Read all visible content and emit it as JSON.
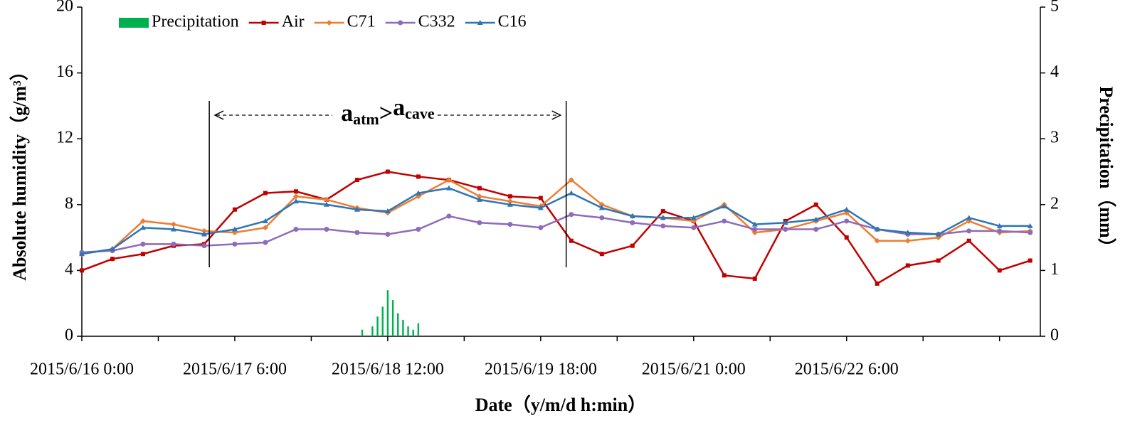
{
  "chart_data": {
    "type": "line",
    "x": [
      "2015/6/16 0:00",
      "2015/6/16 6:00",
      "2015/6/16 12:00",
      "2015/6/16 18:00",
      "2015/6/17 0:00",
      "2015/6/17 6:00",
      "2015/6/17 12:00",
      "2015/6/17 18:00",
      "2015/6/18 0:00",
      "2015/6/18 6:00",
      "2015/6/18 12:00",
      "2015/6/18 18:00",
      "2015/6/19 0:00",
      "2015/6/19 6:00",
      "2015/6/19 12:00",
      "2015/6/19 18:00",
      "2015/6/20 0:00",
      "2015/6/20 6:00",
      "2015/6/20 12:00",
      "2015/6/20 18:00",
      "2015/6/21 0:00",
      "2015/6/21 6:00",
      "2015/6/21 12:00",
      "2015/6/21 18:00",
      "2015/6/22 0:00",
      "2015/6/22 6:00",
      "2015/6/22 12:00",
      "2015/6/22 18:00",
      "2015/6/23 0:00",
      "2015/6/23 6:00",
      "2015/6/23 12:00",
      "2015/6/23 18:00"
    ],
    "series": [
      {
        "name": "Air",
        "color": "#c00000",
        "marker": "square",
        "values": [
          4.0,
          4.7,
          5.0,
          5.5,
          5.6,
          7.7,
          8.7,
          8.8,
          8.3,
          9.5,
          10.0,
          9.7,
          9.5,
          9.0,
          8.5,
          8.4,
          5.8,
          5.0,
          5.5,
          7.6,
          7.0,
          3.7,
          3.5,
          7.0,
          8.0,
          6.0,
          3.2,
          4.3,
          4.6,
          5.8,
          4.0,
          4.6
        ]
      },
      {
        "name": "C71",
        "color": "#ed7d31",
        "marker": "diamond",
        "values": [
          5.0,
          5.3,
          7.0,
          6.8,
          6.4,
          6.3,
          6.6,
          8.5,
          8.3,
          7.8,
          7.5,
          8.5,
          9.5,
          8.5,
          8.2,
          7.9,
          9.5,
          8.0,
          7.3,
          7.2,
          7.0,
          8.0,
          6.3,
          6.5,
          7.0,
          7.5,
          5.8,
          5.8,
          6.0,
          7.0,
          6.3,
          6.4
        ]
      },
      {
        "name": "C332",
        "color": "#8e6bb8",
        "marker": "circle",
        "values": [
          5.1,
          5.2,
          5.6,
          5.6,
          5.5,
          5.6,
          5.7,
          6.5,
          6.5,
          6.3,
          6.2,
          6.5,
          7.3,
          6.9,
          6.8,
          6.6,
          7.4,
          7.2,
          6.9,
          6.7,
          6.6,
          7.0,
          6.5,
          6.5,
          6.5,
          7.0,
          6.5,
          6.2,
          6.2,
          6.4,
          6.4,
          6.3
        ]
      },
      {
        "name": "C16",
        "color": "#2e75b6",
        "marker": "triangle",
        "values": [
          5.0,
          5.3,
          6.6,
          6.5,
          6.2,
          6.5,
          7.0,
          8.2,
          8.0,
          7.7,
          7.6,
          8.7,
          9.0,
          8.3,
          8.0,
          7.8,
          8.7,
          7.8,
          7.3,
          7.2,
          7.2,
          7.9,
          6.8,
          6.9,
          7.1,
          7.7,
          6.5,
          6.3,
          6.2,
          7.2,
          6.7,
          6.7
        ]
      }
    ],
    "bars": {
      "name": "Precipitation",
      "color": "#00b050",
      "axis": "y2",
      "x": [
        "2015/6/18 7:00",
        "2015/6/18 8:00",
        "2015/6/18 9:00",
        "2015/6/18 10:00",
        "2015/6/18 11:00",
        "2015/6/18 12:00",
        "2015/6/18 13:00",
        "2015/6/18 14:00",
        "2015/6/18 15:00",
        "2015/6/18 16:00",
        "2015/6/18 17:00",
        "2015/6/18 18:00"
      ],
      "values": [
        0.1,
        0,
        0.15,
        0.3,
        0.45,
        0.7,
        0.55,
        0.35,
        0.25,
        0.15,
        0.1,
        0.2
      ]
    },
    "xlim": [
      "2015/6/16 0:00",
      "2015/6/23 20:00"
    ],
    "xticks": [
      "2015/6/16 0:00",
      "2015/6/17 6:00",
      "2015/6/18 12:00",
      "2015/6/19 18:00",
      "2015/6/21 0:00",
      "2015/6/22 6:00"
    ],
    "ylim": [
      0,
      20
    ],
    "yticks": [
      0,
      4,
      8,
      12,
      16,
      20
    ],
    "y2lim": [
      0,
      5
    ],
    "y2ticks": [
      0,
      1,
      2,
      3,
      4,
      5
    ],
    "y_label": "Absolute humidity（g/m³）",
    "y2_label": "Precipitation（mm）",
    "x_label": "Date（y/m/d h:min）",
    "annotation": {
      "base1": "a",
      "sub1": "atm",
      "symbol": ">",
      "base2": "a",
      "sub2": "cave",
      "span": [
        "2015/6/17 1:00",
        "2015/6/19 23:00"
      ]
    }
  }
}
